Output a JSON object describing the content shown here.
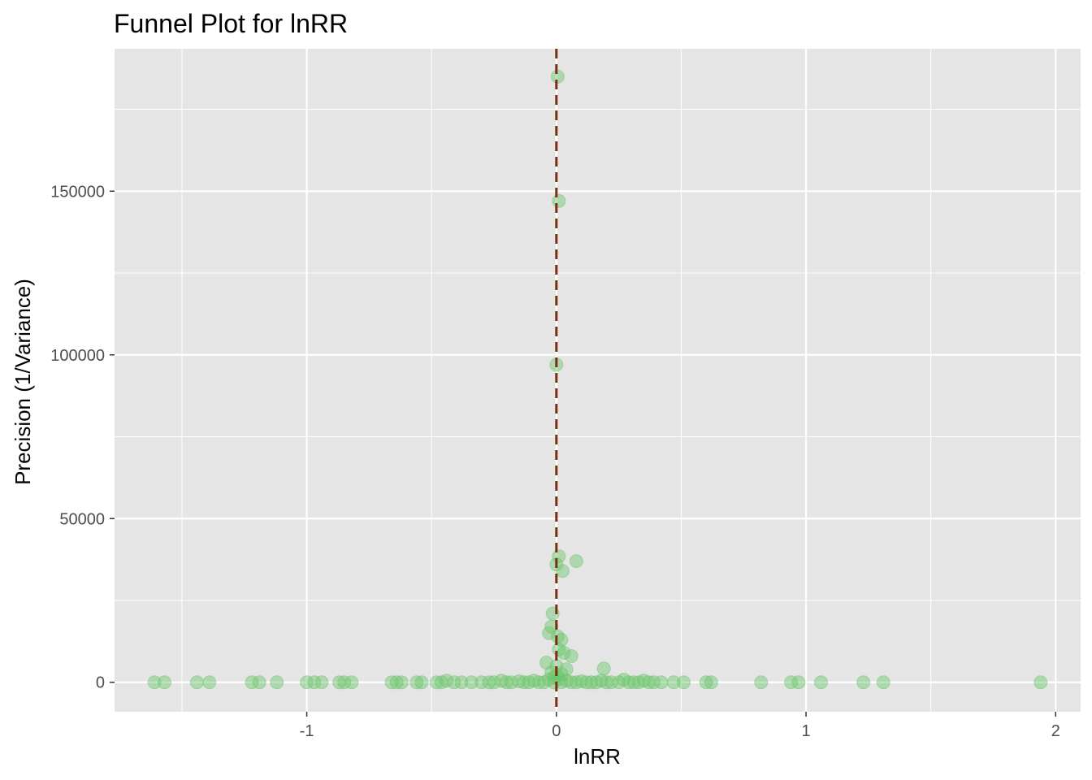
{
  "chart_data": {
    "type": "scatter",
    "title": "Funnel Plot for lnRR",
    "xlabel": "lnRR",
    "ylabel": "Precision (1/Variance)",
    "xlim": [
      -1.77,
      2.1
    ],
    "ylim": [
      -9000,
      193500
    ],
    "x_ticks": [
      -1,
      0,
      1,
      2
    ],
    "x_tick_labels": [
      "-1",
      "0",
      "1",
      "2"
    ],
    "y_ticks": [
      0,
      50000,
      100000,
      150000
    ],
    "y_tick_labels": [
      "0",
      "50000",
      "100000",
      "150000"
    ],
    "x_minor_ticks": [
      -1.5,
      -0.5,
      0.5,
      1.5
    ],
    "y_minor_ticks": [
      25000,
      75000,
      125000,
      175000
    ],
    "reference_line": {
      "x": 0,
      "style": "dashed",
      "color": "#7a3010"
    },
    "grid": true,
    "colors": {
      "panel": "#e5e5e5",
      "grid": "#ffffff",
      "point": "#6cc56c"
    },
    "points": [
      {
        "x": 0.005,
        "y": 185000
      },
      {
        "x": 0.01,
        "y": 147000
      },
      {
        "x": 0.0,
        "y": 97000
      },
      {
        "x": 0.01,
        "y": 38500
      },
      {
        "x": 0.0,
        "y": 36000
      },
      {
        "x": 0.08,
        "y": 37000
      },
      {
        "x": 0.025,
        "y": 34000
      },
      {
        "x": -0.015,
        "y": 21000
      },
      {
        "x": -0.02,
        "y": 17000
      },
      {
        "x": -0.03,
        "y": 15000
      },
      {
        "x": 0.005,
        "y": 14000
      },
      {
        "x": 0.02,
        "y": 13000
      },
      {
        "x": 0.01,
        "y": 10000
      },
      {
        "x": 0.03,
        "y": 9000
      },
      {
        "x": 0.06,
        "y": 8000
      },
      {
        "x": -0.04,
        "y": 6000
      },
      {
        "x": 0.0,
        "y": 5000
      },
      {
        "x": 0.04,
        "y": 4000
      },
      {
        "x": 0.19,
        "y": 4200
      },
      {
        "x": -0.02,
        "y": 3000
      },
      {
        "x": 0.02,
        "y": 2500
      },
      {
        "x": 0.0,
        "y": 2000
      },
      {
        "x": -0.01,
        "y": 1500
      },
      {
        "x": 0.01,
        "y": 1000
      },
      {
        "x": -1.61,
        "y": 0
      },
      {
        "x": -1.57,
        "y": 0
      },
      {
        "x": -1.44,
        "y": 0
      },
      {
        "x": -1.39,
        "y": 0
      },
      {
        "x": -1.22,
        "y": 0
      },
      {
        "x": -1.19,
        "y": 0
      },
      {
        "x": -1.12,
        "y": 0
      },
      {
        "x": -1.0,
        "y": 0
      },
      {
        "x": -0.97,
        "y": 0
      },
      {
        "x": -0.94,
        "y": 0
      },
      {
        "x": -0.87,
        "y": 0
      },
      {
        "x": -0.85,
        "y": 0
      },
      {
        "x": -0.82,
        "y": 0
      },
      {
        "x": -0.66,
        "y": 0
      },
      {
        "x": -0.64,
        "y": 0
      },
      {
        "x": -0.62,
        "y": 0
      },
      {
        "x": -0.56,
        "y": 0
      },
      {
        "x": -0.54,
        "y": 0
      },
      {
        "x": -0.48,
        "y": 0
      },
      {
        "x": -0.46,
        "y": 0
      },
      {
        "x": -0.44,
        "y": 500
      },
      {
        "x": -0.41,
        "y": 0
      },
      {
        "x": -0.38,
        "y": 0
      },
      {
        "x": -0.34,
        "y": 0
      },
      {
        "x": -0.3,
        "y": 0
      },
      {
        "x": -0.27,
        "y": 0
      },
      {
        "x": -0.25,
        "y": 0
      },
      {
        "x": -0.22,
        "y": 500
      },
      {
        "x": -0.2,
        "y": 0
      },
      {
        "x": -0.18,
        "y": 0
      },
      {
        "x": -0.15,
        "y": 300
      },
      {
        "x": -0.13,
        "y": 0
      },
      {
        "x": -0.11,
        "y": 0
      },
      {
        "x": -0.09,
        "y": 500
      },
      {
        "x": -0.07,
        "y": 0
      },
      {
        "x": -0.05,
        "y": 0
      },
      {
        "x": -0.03,
        "y": 800
      },
      {
        "x": -0.01,
        "y": 0
      },
      {
        "x": 0.02,
        "y": 0
      },
      {
        "x": 0.04,
        "y": 500
      },
      {
        "x": 0.06,
        "y": 0
      },
      {
        "x": 0.08,
        "y": 0
      },
      {
        "x": 0.1,
        "y": 300
      },
      {
        "x": 0.12,
        "y": 0
      },
      {
        "x": 0.14,
        "y": 0
      },
      {
        "x": 0.16,
        "y": 0
      },
      {
        "x": 0.18,
        "y": 500
      },
      {
        "x": 0.2,
        "y": 0
      },
      {
        "x": 0.22,
        "y": 0
      },
      {
        "x": 0.25,
        "y": 0
      },
      {
        "x": 0.27,
        "y": 800
      },
      {
        "x": 0.29,
        "y": 0
      },
      {
        "x": 0.31,
        "y": 0
      },
      {
        "x": 0.33,
        "y": 0
      },
      {
        "x": 0.35,
        "y": 500
      },
      {
        "x": 0.37,
        "y": 0
      },
      {
        "x": 0.39,
        "y": 0
      },
      {
        "x": 0.42,
        "y": 0
      },
      {
        "x": 0.47,
        "y": 0
      },
      {
        "x": 0.51,
        "y": 0
      },
      {
        "x": 0.6,
        "y": 0
      },
      {
        "x": 0.62,
        "y": 0
      },
      {
        "x": 0.82,
        "y": 0
      },
      {
        "x": 0.94,
        "y": 0
      },
      {
        "x": 0.97,
        "y": 0
      },
      {
        "x": 1.06,
        "y": 0
      },
      {
        "x": 1.23,
        "y": 0
      },
      {
        "x": 1.31,
        "y": 0
      },
      {
        "x": 1.94,
        "y": 0
      }
    ]
  }
}
